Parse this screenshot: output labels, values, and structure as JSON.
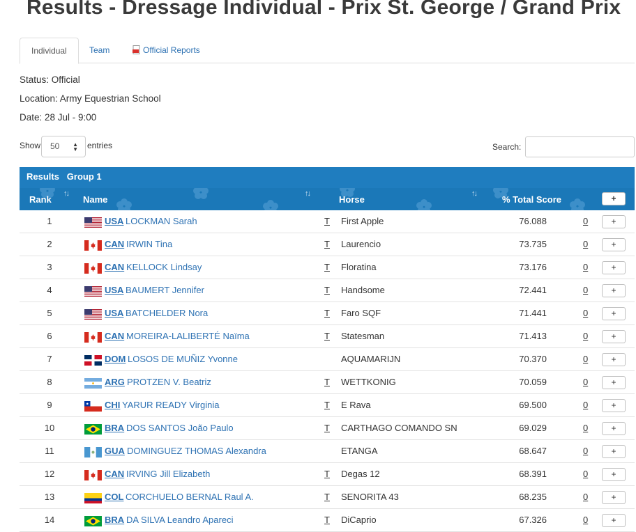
{
  "page": {
    "title": "Results - Dressage Individual - Prix St. George / Grand Prix"
  },
  "tabs": [
    {
      "label": "Individual"
    },
    {
      "label": "Team"
    },
    {
      "label": "Official Reports",
      "icon": "pdf-icon"
    }
  ],
  "meta": {
    "status": "Status:  Official",
    "location": "Location: Army Equestrian School",
    "date": "Date:  28 Jul - 9:00"
  },
  "controls": {
    "show_label": "Show",
    "entries_value": "50",
    "entries_label": "entries",
    "search_label": "Search:",
    "search_value": ""
  },
  "table": {
    "group_title": "Results   Group 1",
    "headers": {
      "rank": "Rank",
      "name": "Name",
      "horse": "Horse",
      "score": "% Total Score",
      "expand": "+"
    },
    "rows": [
      {
        "rank": "1",
        "flag": "USA",
        "noc": "USA",
        "athlete": "LOCKMAN Sarah",
        "mark": "T",
        "horse": "First Apple",
        "score": "76.088",
        "penalty": "0",
        "expand": "+"
      },
      {
        "rank": "2",
        "flag": "CAN",
        "noc": "CAN",
        "athlete": "IRWIN Tina",
        "mark": "T",
        "horse": "Laurencio",
        "score": "73.735",
        "penalty": "0",
        "expand": "+"
      },
      {
        "rank": "3",
        "flag": "CAN",
        "noc": "CAN",
        "athlete": "KELLOCK Lindsay",
        "mark": "T",
        "horse": "Floratina",
        "score": "73.176",
        "penalty": "0",
        "expand": "+"
      },
      {
        "rank": "4",
        "flag": "USA",
        "noc": "USA",
        "athlete": "BAUMERT Jennifer",
        "mark": "T",
        "horse": "Handsome",
        "score": "72.441",
        "penalty": "0",
        "expand": "+"
      },
      {
        "rank": "5",
        "flag": "USA",
        "noc": "USA",
        "athlete": "BATCHELDER Nora",
        "mark": "T",
        "horse": "Faro SQF",
        "score": "71.441",
        "penalty": "0",
        "expand": "+"
      },
      {
        "rank": "6",
        "flag": "CAN",
        "noc": "CAN",
        "athlete": "MOREIRA-LALIBERTÉ Naïma",
        "mark": "T",
        "horse": "Statesman",
        "score": "71.413",
        "penalty": "0",
        "expand": "+"
      },
      {
        "rank": "7",
        "flag": "DOM",
        "noc": "DOM",
        "athlete": "LOSOS DE MUÑIZ Yvonne",
        "mark": "",
        "horse": "AQUAMARIJN",
        "score": "70.370",
        "penalty": "0",
        "expand": "+"
      },
      {
        "rank": "8",
        "flag": "ARG",
        "noc": "ARG",
        "athlete": "PROTZEN V. Beatriz",
        "mark": "T",
        "horse": "WETTKONIG",
        "score": "70.059",
        "penalty": "0",
        "expand": "+"
      },
      {
        "rank": "9",
        "flag": "CHI",
        "noc": "CHI",
        "athlete": "YARUR READY Virginia",
        "mark": "T",
        "horse": "E Rava",
        "score": "69.500",
        "penalty": "0",
        "expand": "+"
      },
      {
        "rank": "10",
        "flag": "BRA",
        "noc": "BRA",
        "athlete": "DOS SANTOS João Paulo",
        "mark": "T",
        "horse": "CARTHAGO COMANDO SN",
        "score": "69.029",
        "penalty": "0",
        "expand": "+"
      },
      {
        "rank": "11",
        "flag": "GUA",
        "noc": "GUA",
        "athlete": "DOMINGUEZ THOMAS Alexandra",
        "mark": "",
        "horse": "ETANGA",
        "score": "68.647",
        "penalty": "0",
        "expand": "+"
      },
      {
        "rank": "12",
        "flag": "CAN",
        "noc": "CAN",
        "athlete": "IRVING Jill Elizabeth",
        "mark": "T",
        "horse": "Degas 12",
        "score": "68.391",
        "penalty": "0",
        "expand": "+"
      },
      {
        "rank": "13",
        "flag": "COL",
        "noc": "COL",
        "athlete": "CORCHUELO BERNAL Raul A.",
        "mark": "T",
        "horse": "SENORITA 43",
        "score": "68.235",
        "penalty": "0",
        "expand": "+"
      },
      {
        "rank": "14",
        "flag": "BRA",
        "noc": "BRA",
        "athlete": "DA SILVA Leandro Apareci",
        "mark": "T",
        "horse": "DiCaprio",
        "score": "67.326",
        "penalty": "0",
        "expand": "+"
      }
    ]
  },
  "colors": {
    "header_blue": "#1b78b8",
    "group_blue": "#1f7dbf",
    "link_blue": "#2e72b3"
  }
}
